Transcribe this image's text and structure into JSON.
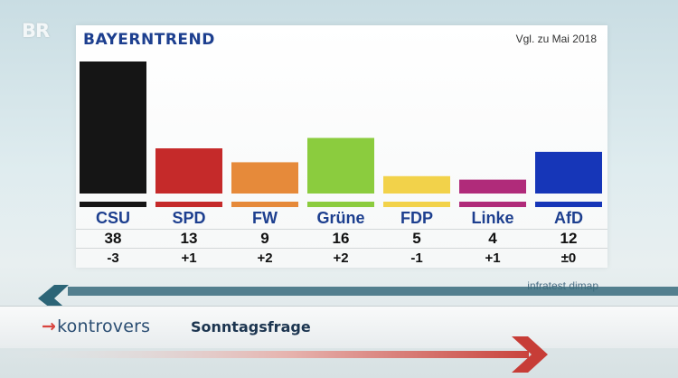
{
  "broadcaster": {
    "logo": "BR"
  },
  "chart_data": {
    "type": "bar",
    "title": "BAYERNTREND",
    "comparison_note": "Vgl. zu Mai 2018",
    "categories": [
      "CSU",
      "SPD",
      "FW",
      "Grüne",
      "FDP",
      "Linke",
      "AfD"
    ],
    "values": [
      38,
      13,
      9,
      16,
      5,
      4,
      12
    ],
    "changes": [
      "-3",
      "+1",
      "+2",
      "+2",
      "-1",
      "+1",
      "±0"
    ],
    "colors": [
      "#151515",
      "#c52a2a",
      "#e68a3a",
      "#8bcc3e",
      "#f2d24a",
      "#b02b7a",
      "#1636b8"
    ],
    "ylim": [
      0,
      40
    ],
    "xlabel": "",
    "ylabel": "",
    "grid": false,
    "legend": "none",
    "source": "infratest dimap"
  },
  "lower_third": {
    "brand_arrow": "→",
    "brand_name": "kontrovers",
    "program_title": "Sonntagsfrage"
  }
}
